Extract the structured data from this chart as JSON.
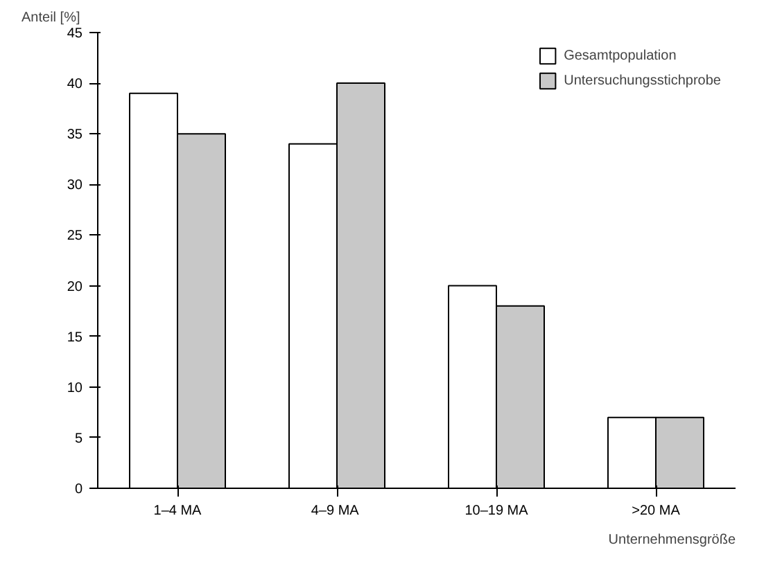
{
  "chart_data": {
    "type": "bar",
    "ylabel": "Anteil [%]",
    "xlabel": "Unternehmensgröße",
    "categories": [
      "1–4 MA",
      "4–9  MA",
      "10–19 MA",
      ">20 MA"
    ],
    "series": [
      {
        "name": "Gesamtpopulation",
        "color": "#ffffff",
        "values": [
          39,
          34,
          20,
          7
        ]
      },
      {
        "name": "Untersuchungsstichprobe",
        "color": "#c8c8c8",
        "values": [
          35,
          40,
          18,
          7
        ]
      }
    ],
    "ylim": [
      0,
      45
    ],
    "yticks": [
      0,
      5,
      10,
      15,
      20,
      25,
      30,
      35,
      40,
      45
    ],
    "grid": false,
    "legend": "top right"
  }
}
